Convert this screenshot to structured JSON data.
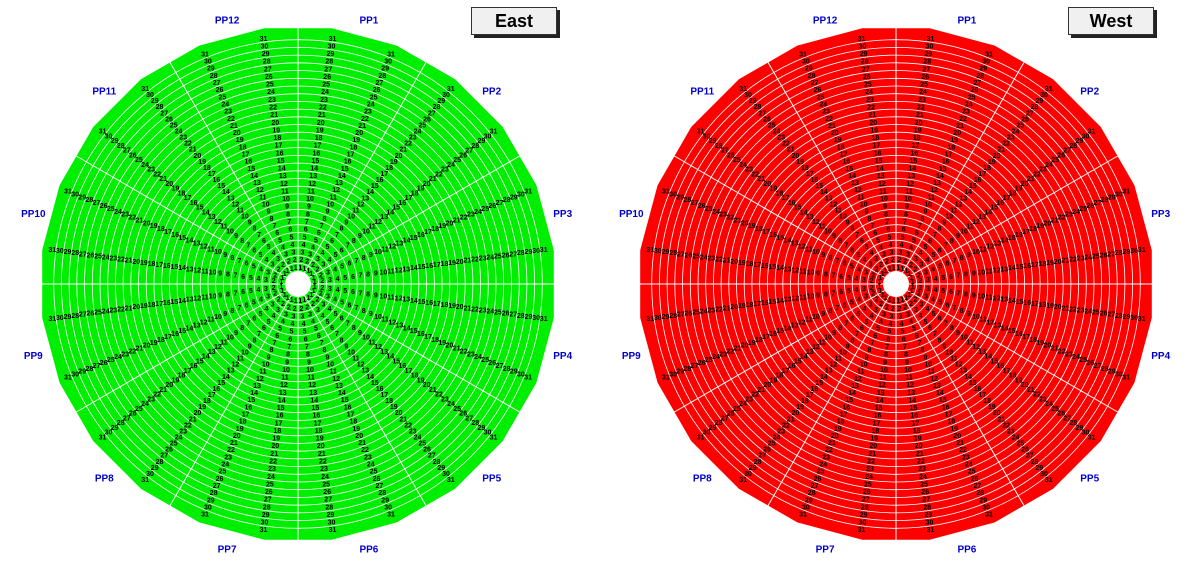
{
  "east": {
    "title": "East",
    "fill": "#00ee00",
    "labels": [
      "PP1",
      "PP2",
      "PP3",
      "PP4",
      "PP5",
      "PP6",
      "PP7",
      "PP8",
      "PP9",
      "PP10",
      "PP11",
      "PP12"
    ],
    "direction": "clockwise"
  },
  "west": {
    "title": "West",
    "fill": "#ff0000",
    "labels": [
      "PP12",
      "PP11",
      "PP10",
      "PP9",
      "PP8",
      "PP7",
      "PP6",
      "PP5",
      "PP4",
      "PP3",
      "PP2",
      "PP1"
    ],
    "direction": "counterclockwise"
  },
  "rows": [
    "1",
    "2",
    "3",
    "4",
    "5",
    "6",
    "7",
    "8",
    "9",
    "10",
    "11",
    "12",
    "13",
    "14",
    "15",
    "16",
    "17",
    "18",
    "19",
    "20",
    "21",
    "22",
    "23",
    "24",
    "25",
    "26",
    "27",
    "28",
    "29",
    "30",
    "31"
  ],
  "colors": {
    "grid": "#ffffff",
    "label": "#0000cc",
    "hub": "#ffffff"
  }
}
